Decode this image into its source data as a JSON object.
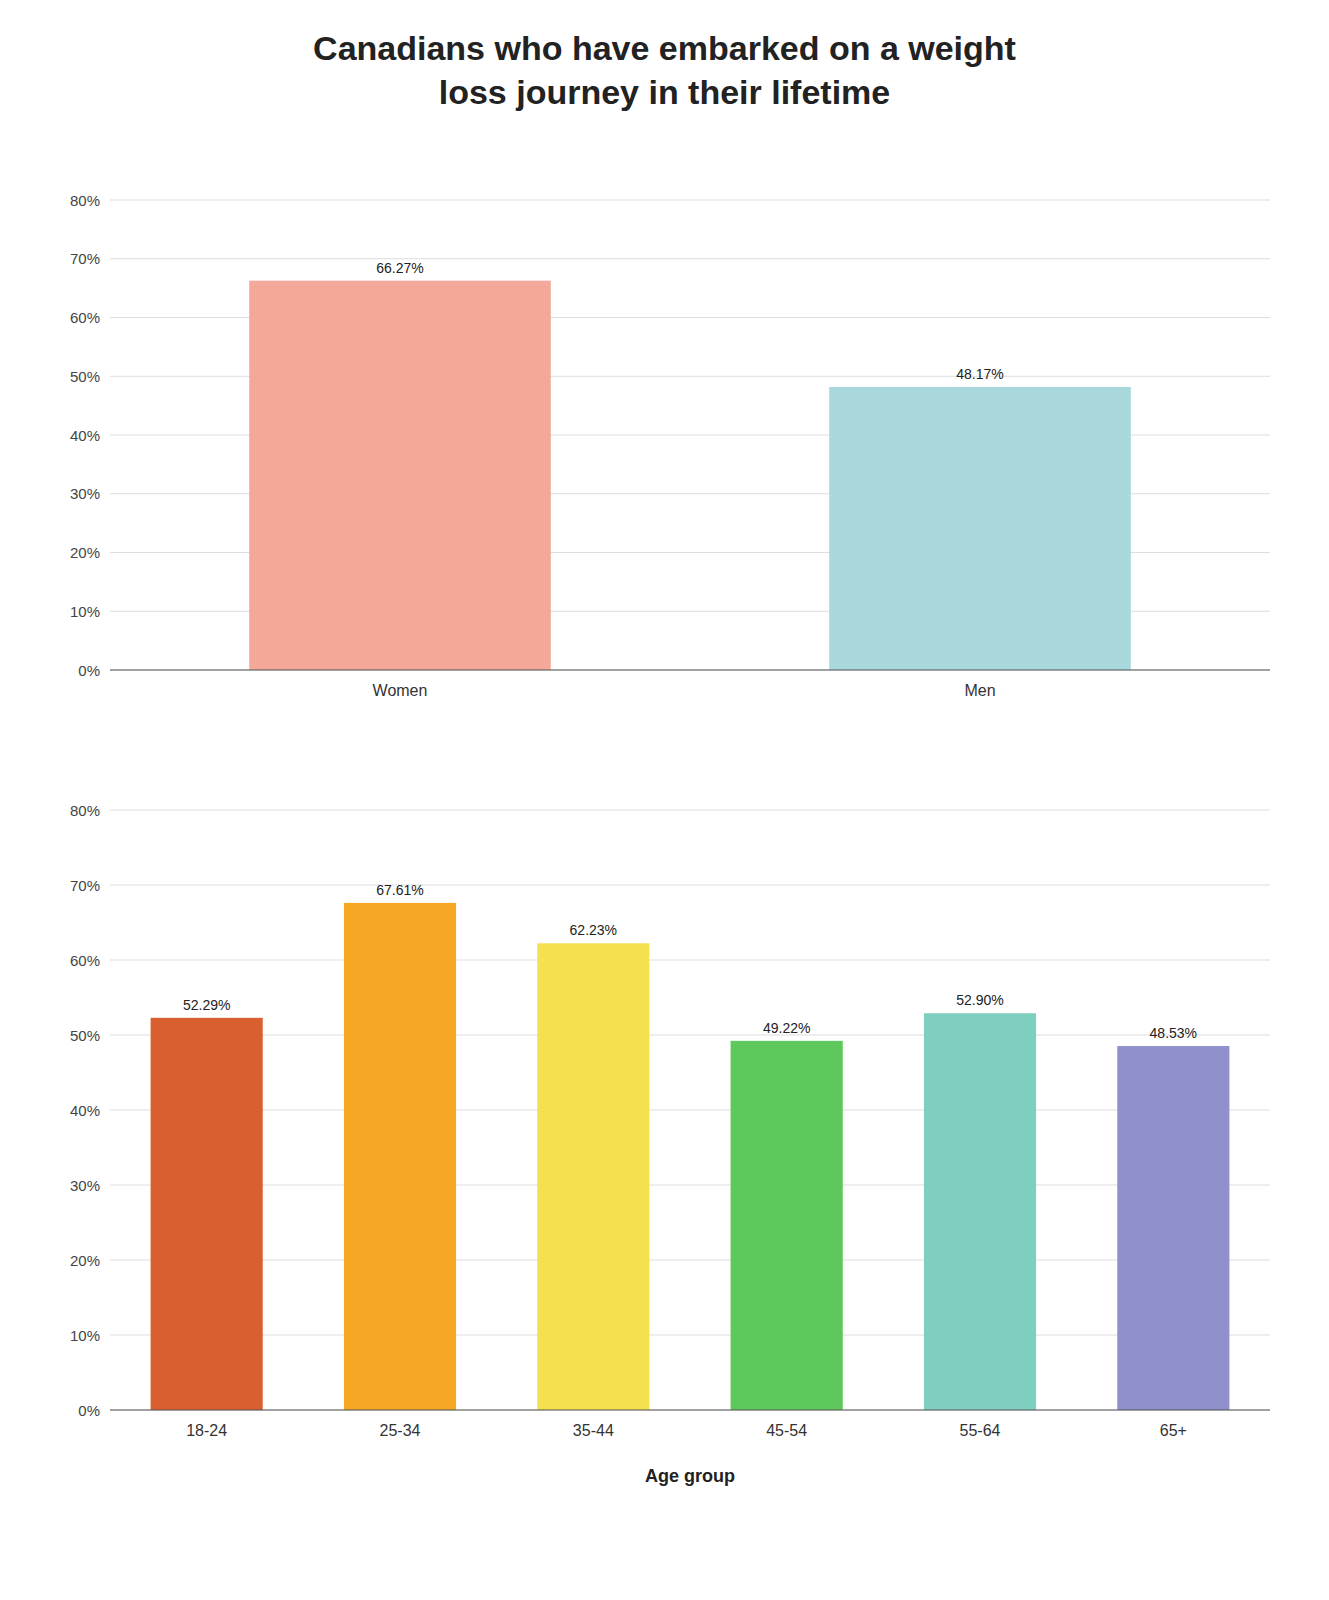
{
  "chart_data": [
    {
      "type": "bar",
      "title": "Canadians who have embarked on a weight\nloss journey in their lifetime",
      "categories": [
        "Women",
        "Men"
      ],
      "values": [
        66.27,
        48.17
      ],
      "value_labels": [
        "66.27%",
        "48.17%"
      ],
      "colors": [
        "#F4A89A",
        "#A8D8DC"
      ],
      "ylim": [
        0,
        80
      ],
      "yticks": [
        {
          "value": 0,
          "label": "0%"
        },
        {
          "value": 10,
          "label": "10%"
        },
        {
          "value": 20,
          "label": "20%"
        },
        {
          "value": 30,
          "label": "30%"
        },
        {
          "value": 40,
          "label": "40%"
        },
        {
          "value": 50,
          "label": "50%"
        },
        {
          "value": 60,
          "label": "60%"
        },
        {
          "value": 70,
          "label": "70%"
        },
        {
          "value": 80,
          "label": "80%"
        }
      ],
      "grid": true,
      "data_labels": true
    },
    {
      "type": "bar",
      "x_label": "Age group",
      "categories": [
        "18-24",
        "25-34",
        "35-44",
        "45-54",
        "55-64",
        "65+"
      ],
      "values": [
        52.29,
        67.61,
        62.23,
        49.22,
        52.9,
        48.53
      ],
      "value_labels": [
        "52.29%",
        "67.61%",
        "62.23%",
        "49.22%",
        "52.90%",
        "48.53%"
      ],
      "colors": [
        "#D95F30",
        "#F5A623",
        "#F5E050",
        "#5DC85C",
        "#7ECFC0",
        "#9090CC"
      ],
      "ylim": [
        0,
        80
      ],
      "yticks": [
        {
          "value": 0,
          "label": "0%"
        },
        {
          "value": 10,
          "label": "10%"
        },
        {
          "value": 20,
          "label": "20%"
        },
        {
          "value": 30,
          "label": "30%"
        },
        {
          "value": 40,
          "label": "40%"
        },
        {
          "value": 50,
          "label": "50%"
        },
        {
          "value": 60,
          "label": "60%"
        },
        {
          "value": 70,
          "label": "70%"
        },
        {
          "value": 80,
          "label": "80%"
        }
      ],
      "grid": true,
      "data_labels": true
    }
  ]
}
